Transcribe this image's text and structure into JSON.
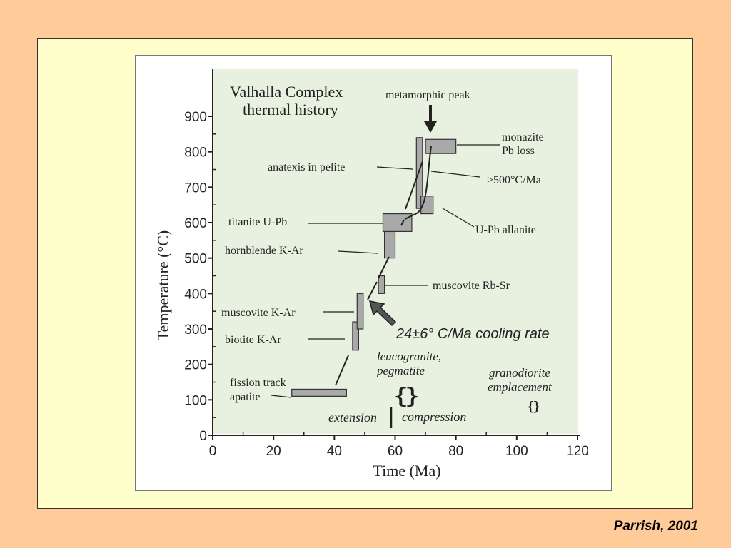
{
  "colors": {
    "slide_background": "#FFCC99",
    "panel_background": "#FFFFCC",
    "plot_background": "#E8F1E0",
    "box_fill": "#A9A9A9",
    "ink": "#222222"
  },
  "citation": "Parrish, 2001",
  "chart_data": {
    "type": "annotated-range-plot",
    "title": "Valhalla Complex",
    "subtitle": "thermal history",
    "xlabel": "Time (Ma)",
    "ylabel": "Temperature (°C)",
    "xlim": [
      0,
      120
    ],
    "ylim": [
      0,
      1000
    ],
    "x_ticks": [
      "0",
      "20",
      "40",
      "60",
      "80",
      "100",
      "120"
    ],
    "y_ticks": [
      "0",
      "100",
      "200",
      "300",
      "400",
      "500",
      "600",
      "700",
      "800",
      "900"
    ],
    "grid": false,
    "boxes": [
      {
        "label": "fission track\napatite",
        "x": [
          26,
          44
        ],
        "y": [
          110,
          130
        ]
      },
      {
        "label": "biotite K-Ar",
        "x": [
          46,
          48
        ],
        "y": [
          240,
          320
        ]
      },
      {
        "label": "muscovite K-Ar",
        "x": [
          47.5,
          49.5
        ],
        "y": [
          300,
          400
        ]
      },
      {
        "label": "muscovite Rb-Sr",
        "x": [
          54.5,
          56.5
        ],
        "y": [
          400,
          450
        ]
      },
      {
        "label": "hornblende K-Ar",
        "x": [
          56.5,
          60
        ],
        "y": [
          500,
          575
        ]
      },
      {
        "label": "titanite U-Pb",
        "x": [
          56,
          65.5
        ],
        "y": [
          575,
          625
        ]
      },
      {
        "label": "anatexis in pelite",
        "x": [
          67,
          69
        ],
        "y": [
          640,
          840
        ]
      },
      {
        "label": "U-Pb allanite",
        "x": [
          68.5,
          72.5
        ],
        "y": [
          625,
          675
        ]
      },
      {
        "label": "monazite\nPb loss",
        "x": [
          70,
          80
        ],
        "y": [
          795,
          835
        ]
      }
    ],
    "annotations": {
      "metamorphic_peak": "metamorphic peak",
      "fast_cooling": ">500°C/Ma",
      "cooling_rate": "24±6° C/Ma cooling rate",
      "leucogranite": "leucogranite,\npegmatite",
      "granodiorite": "granodiorite\nemplacement",
      "extension": "extension",
      "compression": "compression"
    }
  }
}
